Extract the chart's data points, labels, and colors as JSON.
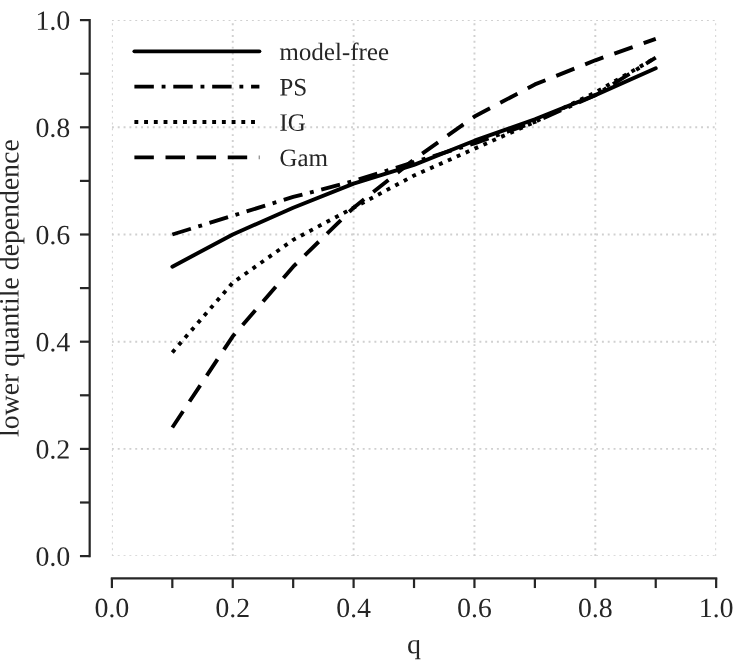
{
  "chart_data": {
    "type": "line",
    "xlabel": "q",
    "ylabel": "lower quantile dependence",
    "x": [
      0.1,
      0.2,
      0.3,
      0.4,
      0.5,
      0.6,
      0.7,
      0.8,
      0.9
    ],
    "series": [
      {
        "name": "model-free",
        "color": "#000000",
        "line_style": "solid",
        "values": [
          0.54,
          0.6,
          0.65,
          0.695,
          0.73,
          0.775,
          0.815,
          0.86,
          0.91
        ]
      },
      {
        "name": "PS",
        "color": "#000000",
        "line_style": "dashdot",
        "values": [
          0.6,
          0.635,
          0.67,
          0.7,
          0.735,
          0.77,
          0.81,
          0.86,
          0.93
        ]
      },
      {
        "name": "IG",
        "color": "#000000",
        "line_style": "dotted",
        "values": [
          0.38,
          0.51,
          0.59,
          0.65,
          0.71,
          0.76,
          0.81,
          0.865,
          0.93
        ]
      },
      {
        "name": "Gam",
        "color": "#000000",
        "line_style": "dashed",
        "values": [
          0.24,
          0.41,
          0.54,
          0.65,
          0.74,
          0.82,
          0.88,
          0.925,
          0.965
        ]
      }
    ],
    "xlim": [
      0,
      1
    ],
    "ylim": [
      0,
      1
    ],
    "xticks": [
      {
        "value": 0,
        "label": "0.0"
      },
      {
        "value": 0.1,
        "label": null
      },
      0.2,
      {
        "value": 0.3,
        "label": null
      },
      0.4,
      {
        "value": 0.5,
        "label": null
      },
      0.6,
      {
        "value": 0.7,
        "label": null
      },
      0.8,
      {
        "value": 0.9,
        "label": null
      },
      {
        "value": 1,
        "label": "1.0"
      }
    ],
    "yticks": [
      {
        "value": 0,
        "label": "0.0"
      },
      {
        "value": 0.1,
        "label": null
      },
      0.2,
      {
        "value": 0.3,
        "label": null
      },
      0.4,
      {
        "value": 0.5,
        "label": null
      },
      0.6,
      {
        "value": 0.7,
        "label": null
      },
      0.8,
      {
        "value": 0.9,
        "label": null
      },
      {
        "value": 1,
        "label": "1.0"
      }
    ],
    "grid": true,
    "legend": "top left",
    "marker": "none"
  }
}
